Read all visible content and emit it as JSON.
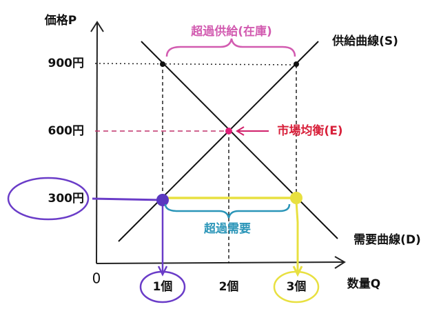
{
  "axes": {
    "y_label": "価格P",
    "x_label": "数量Q",
    "origin": "0",
    "y_ticks": [
      "900円",
      "600円",
      "300円"
    ],
    "x_ticks": [
      "1個",
      "2個",
      "3個"
    ]
  },
  "curves": {
    "supply": "供給曲線(S)",
    "demand": "需要曲線(D)"
  },
  "annotations": {
    "equilibrium": "市場均衡(E)",
    "excess_supply": "超過供給(在庫)",
    "excess_demand": "超過需要"
  }
}
